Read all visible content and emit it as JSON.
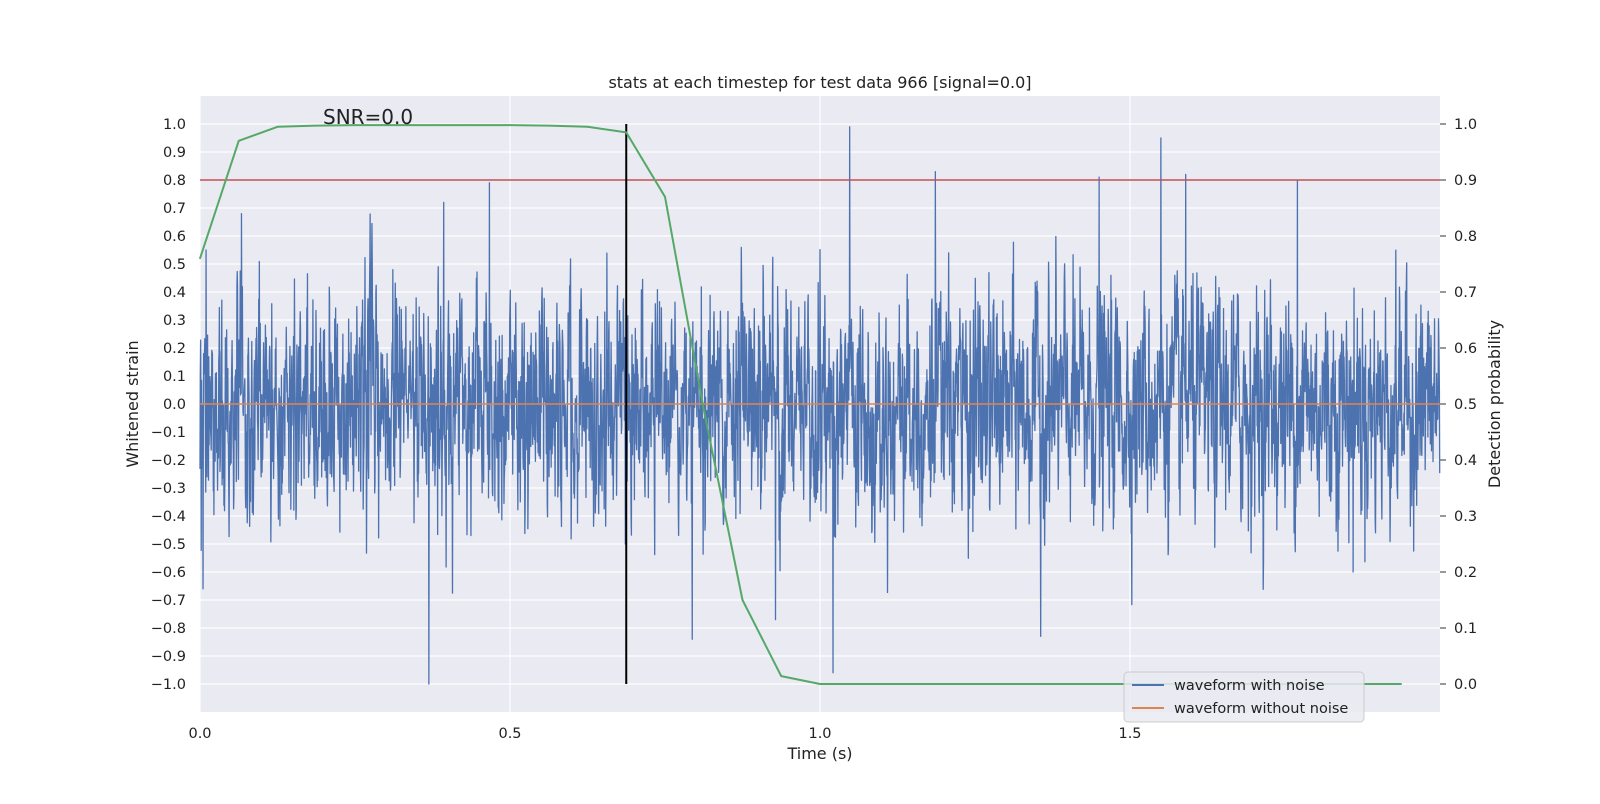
{
  "chart_data": {
    "type": "line",
    "title": "stats at each timestep for test data 966 [signal=0.0]",
    "xlabel": "Time (s)",
    "ylabel": "Whitened strain",
    "y2label": "Detection probability",
    "xlim": [
      0.0,
      2.0
    ],
    "ylim": [
      -1.1,
      1.1
    ],
    "y2lim": [
      -0.05,
      1.05
    ],
    "x_ticks": [
      0.0,
      0.5,
      1.0,
      1.5
    ],
    "x_tick_labels": [
      "0.0",
      "0.5",
      "1.0",
      "1.5"
    ],
    "y_ticks": [
      1.0,
      0.9,
      0.8,
      0.7,
      0.6,
      0.5,
      0.4,
      0.3,
      0.2,
      0.1,
      0.0,
      -0.1,
      -0.2,
      -0.3,
      -0.4,
      -0.5,
      -0.6,
      -0.7,
      -0.8,
      -0.9,
      -1.0
    ],
    "y_tick_labels": [
      "1.0",
      "0.9",
      "0.8",
      "0.7",
      "0.6",
      "0.5",
      "0.4",
      "0.3",
      "0.2",
      "0.1",
      "0.0",
      "−0.1",
      "−0.2",
      "−0.3",
      "−0.4",
      "−0.5",
      "−0.6",
      "−0.7",
      "−0.8",
      "−0.9",
      "−1.0"
    ],
    "y2_ticks": [
      1.0,
      0.9,
      0.8,
      0.7,
      0.6,
      0.5,
      0.4,
      0.3,
      0.2,
      0.1,
      0.0
    ],
    "y2_tick_labels": [
      "1.0",
      "0.9",
      "0.8",
      "0.7",
      "0.6",
      "0.5",
      "0.4",
      "0.3",
      "0.2",
      "0.1",
      "0.0"
    ],
    "grid": true,
    "legend_position": "lower-right",
    "annotation": "SNR=0.0",
    "series": [
      {
        "name": "waveform with noise",
        "color": "#4c72b0",
        "kind": "noise",
        "sample_rate": 2048,
        "amplitude_range": [
          -1.0,
          1.0
        ],
        "extremes": [
          {
            "x": 0.005,
            "y": -0.66
          },
          {
            "x": 0.01,
            "y": 0.55
          },
          {
            "x": 0.067,
            "y": 0.68
          },
          {
            "x": 0.369,
            "y": -1.0
          },
          {
            "x": 0.393,
            "y": 0.72
          },
          {
            "x": 0.467,
            "y": 0.79
          },
          {
            "x": 0.686,
            "y": -0.5
          },
          {
            "x": 0.794,
            "y": -0.84
          },
          {
            "x": 0.928,
            "y": -0.77
          },
          {
            "x": 1.021,
            "y": -0.96
          },
          {
            "x": 1.048,
            "y": 0.99
          },
          {
            "x": 1.186,
            "y": 0.83
          },
          {
            "x": 1.356,
            "y": -0.83
          },
          {
            "x": 1.45,
            "y": 0.81
          },
          {
            "x": 1.55,
            "y": 0.95
          },
          {
            "x": 1.59,
            "y": 0.82
          },
          {
            "x": 1.77,
            "y": 0.8
          },
          {
            "x": 1.86,
            "y": -0.6
          }
        ]
      },
      {
        "name": "waveform without noise",
        "color": "#dd8452",
        "x": [
          0.0,
          2.0
        ],
        "y": [
          0.0,
          0.0
        ]
      },
      {
        "name": "",
        "color": "#55a868",
        "axis": "right",
        "x": [
          0.0,
          0.0625,
          0.125,
          0.1875,
          0.25,
          0.3125,
          0.375,
          0.4375,
          0.5,
          0.5625,
          0.625,
          0.6875,
          0.75,
          0.8125,
          0.875,
          0.9375,
          1.0,
          1.0625,
          1.125,
          1.1875,
          1.25,
          1.3125,
          1.375,
          1.4375,
          1.5,
          1.5625,
          1.625,
          1.6875,
          1.75,
          1.8125,
          1.875,
          1.9375
        ],
        "y": [
          0.76,
          0.97,
          0.995,
          0.997,
          0.998,
          0.998,
          0.998,
          0.998,
          0.998,
          0.997,
          0.995,
          0.985,
          0.87,
          0.49,
          0.15,
          0.014,
          0.0,
          0.0,
          0.0,
          0.0,
          0.0,
          0.0,
          0.0,
          0.0,
          0.0,
          0.0,
          0.0,
          0.0,
          0.0,
          0.0,
          0.0,
          0.0
        ]
      }
    ],
    "reference_lines": [
      {
        "orientation": "horizontal",
        "axis": "right",
        "value": 0.9,
        "color": "#c44e52"
      },
      {
        "orientation": "vertical",
        "value": 0.6875,
        "y_from": -1.0,
        "y_to": 1.0,
        "color": "#000000"
      }
    ]
  }
}
